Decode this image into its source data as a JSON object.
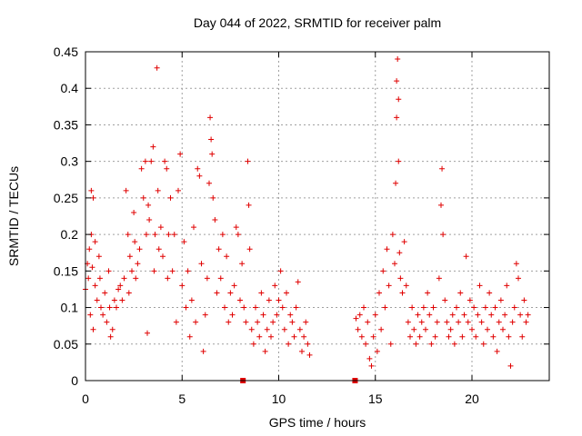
{
  "chart_data": {
    "type": "scatter",
    "title": "Day 044 of 2022, SRMTID for receiver palm",
    "xlabel": "GPS time / hours",
    "ylabel": "SRMTID / TECUs",
    "xlim": [
      0,
      24
    ],
    "ylim": [
      0,
      0.45
    ],
    "xticks": [
      0,
      5,
      10,
      15,
      20
    ],
    "xtick_labels": [
      "0",
      "5",
      "10",
      "15",
      "20"
    ],
    "yticks": [
      0,
      0.05,
      0.1,
      0.15,
      0.2,
      0.25,
      0.3,
      0.35,
      0.4,
      0.45
    ],
    "ytick_labels": [
      "0",
      "0.05",
      "0.1",
      "0.15",
      "0.2",
      "0.25",
      "0.3",
      "0.35",
      "0.4",
      "0.45"
    ],
    "grid": true,
    "marker": "plus",
    "colors": {
      "series": "#e00000",
      "grid": "#a0a0a0",
      "axis": "#000000"
    },
    "gap_markers": [
      {
        "x": 8.15,
        "y": 0
      },
      {
        "x": 13.95,
        "y": 0
      }
    ],
    "series": [
      {
        "name": "SRMTID",
        "points": [
          [
            0.0,
            0.125
          ],
          [
            0.1,
            0.16
          ],
          [
            0.15,
            0.14
          ],
          [
            0.2,
            0.18
          ],
          [
            0.25,
            0.09
          ],
          [
            0.3,
            0.26
          ],
          [
            0.3,
            0.2
          ],
          [
            0.35,
            0.155
          ],
          [
            0.4,
            0.25
          ],
          [
            0.4,
            0.07
          ],
          [
            0.5,
            0.19
          ],
          [
            0.5,
            0.13
          ],
          [
            0.6,
            0.11
          ],
          [
            0.7,
            0.17
          ],
          [
            0.75,
            0.14
          ],
          [
            0.8,
            0.1
          ],
          [
            0.9,
            0.09
          ],
          [
            1.0,
            0.12
          ],
          [
            1.1,
            0.08
          ],
          [
            1.2,
            0.15
          ],
          [
            1.25,
            0.1
          ],
          [
            1.3,
            0.06
          ],
          [
            1.4,
            0.07
          ],
          [
            1.5,
            0.11
          ],
          [
            1.6,
            0.1
          ],
          [
            1.7,
            0.125
          ],
          [
            1.8,
            0.13
          ],
          [
            1.9,
            0.11
          ],
          [
            2.0,
            0.14
          ],
          [
            2.1,
            0.26
          ],
          [
            2.2,
            0.2
          ],
          [
            2.25,
            0.12
          ],
          [
            2.3,
            0.17
          ],
          [
            2.4,
            0.15
          ],
          [
            2.5,
            0.23
          ],
          [
            2.55,
            0.19
          ],
          [
            2.6,
            0.14
          ],
          [
            2.7,
            0.16
          ],
          [
            2.8,
            0.18
          ],
          [
            2.9,
            0.29
          ],
          [
            3.0,
            0.25
          ],
          [
            3.1,
            0.3
          ],
          [
            3.15,
            0.2
          ],
          [
            3.2,
            0.065
          ],
          [
            3.25,
            0.24
          ],
          [
            3.3,
            0.22
          ],
          [
            3.4,
            0.3
          ],
          [
            3.5,
            0.32
          ],
          [
            3.55,
            0.15
          ],
          [
            3.6,
            0.2
          ],
          [
            3.7,
            0.428
          ],
          [
            3.75,
            0.26
          ],
          [
            3.8,
            0.18
          ],
          [
            3.9,
            0.21
          ],
          [
            4.0,
            0.17
          ],
          [
            4.1,
            0.3
          ],
          [
            4.2,
            0.29
          ],
          [
            4.25,
            0.14
          ],
          [
            4.3,
            0.2
          ],
          [
            4.4,
            0.25
          ],
          [
            4.5,
            0.15
          ],
          [
            4.6,
            0.2
          ],
          [
            4.7,
            0.08
          ],
          [
            4.8,
            0.26
          ],
          [
            4.9,
            0.31
          ],
          [
            5.0,
            0.13
          ],
          [
            5.1,
            0.19
          ],
          [
            5.2,
            0.1
          ],
          [
            5.3,
            0.15
          ],
          [
            5.4,
            0.06
          ],
          [
            5.5,
            0.11
          ],
          [
            5.6,
            0.21
          ],
          [
            5.7,
            0.08
          ],
          [
            5.8,
            0.29
          ],
          [
            5.9,
            0.28
          ],
          [
            6.0,
            0.16
          ],
          [
            6.1,
            0.04
          ],
          [
            6.2,
            0.09
          ],
          [
            6.3,
            0.14
          ],
          [
            6.4,
            0.27
          ],
          [
            6.45,
            0.36
          ],
          [
            6.5,
            0.33
          ],
          [
            6.55,
            0.31
          ],
          [
            6.6,
            0.25
          ],
          [
            6.7,
            0.22
          ],
          [
            6.8,
            0.12
          ],
          [
            6.9,
            0.18
          ],
          [
            7.0,
            0.14
          ],
          [
            7.1,
            0.2
          ],
          [
            7.2,
            0.1
          ],
          [
            7.3,
            0.17
          ],
          [
            7.4,
            0.08
          ],
          [
            7.5,
            0.12
          ],
          [
            7.6,
            0.09
          ],
          [
            7.7,
            0.13
          ],
          [
            7.8,
            0.21
          ],
          [
            7.9,
            0.2
          ],
          [
            8.0,
            0.11
          ],
          [
            8.1,
            0.16
          ],
          [
            8.2,
            0.1
          ],
          [
            8.3,
            0.08
          ],
          [
            8.4,
            0.3
          ],
          [
            8.45,
            0.24
          ],
          [
            8.5,
            0.18
          ],
          [
            8.6,
            0.07
          ],
          [
            8.7,
            0.05
          ],
          [
            8.8,
            0.1
          ],
          [
            8.9,
            0.08
          ],
          [
            9.0,
            0.06
          ],
          [
            9.1,
            0.12
          ],
          [
            9.2,
            0.09
          ],
          [
            9.3,
            0.04
          ],
          [
            9.4,
            0.07
          ],
          [
            9.5,
            0.11
          ],
          [
            9.6,
            0.06
          ],
          [
            9.7,
            0.08
          ],
          [
            9.8,
            0.13
          ],
          [
            9.9,
            0.09
          ],
          [
            10.0,
            0.11
          ],
          [
            10.1,
            0.15
          ],
          [
            10.2,
            0.1
          ],
          [
            10.3,
            0.07
          ],
          [
            10.4,
            0.12
          ],
          [
            10.5,
            0.05
          ],
          [
            10.6,
            0.09
          ],
          [
            10.7,
            0.08
          ],
          [
            10.8,
            0.06
          ],
          [
            10.9,
            0.1
          ],
          [
            11.0,
            0.135
          ],
          [
            11.1,
            0.07
          ],
          [
            11.2,
            0.04
          ],
          [
            11.3,
            0.06
          ],
          [
            11.4,
            0.08
          ],
          [
            11.5,
            0.05
          ],
          [
            11.6,
            0.035
          ],
          [
            14.0,
            0.085
          ],
          [
            14.1,
            0.07
          ],
          [
            14.2,
            0.09
          ],
          [
            14.3,
            0.06
          ],
          [
            14.4,
            0.1
          ],
          [
            14.5,
            0.05
          ],
          [
            14.6,
            0.08
          ],
          [
            14.7,
            0.03
          ],
          [
            14.8,
            0.02
          ],
          [
            14.9,
            0.06
          ],
          [
            15.0,
            0.09
          ],
          [
            15.1,
            0.04
          ],
          [
            15.2,
            0.12
          ],
          [
            15.3,
            0.07
          ],
          [
            15.4,
            0.15
          ],
          [
            15.5,
            0.1
          ],
          [
            15.6,
            0.18
          ],
          [
            15.7,
            0.13
          ],
          [
            15.8,
            0.05
          ],
          [
            15.9,
            0.2
          ],
          [
            16.0,
            0.16
          ],
          [
            16.05,
            0.27
          ],
          [
            16.1,
            0.36
          ],
          [
            16.1,
            0.41
          ],
          [
            16.15,
            0.44
          ],
          [
            16.2,
            0.385
          ],
          [
            16.2,
            0.3
          ],
          [
            16.25,
            0.175
          ],
          [
            16.3,
            0.14
          ],
          [
            16.4,
            0.12
          ],
          [
            16.5,
            0.19
          ],
          [
            16.6,
            0.13
          ],
          [
            16.7,
            0.08
          ],
          [
            16.8,
            0.06
          ],
          [
            16.9,
            0.1
          ],
          [
            17.0,
            0.07
          ],
          [
            17.1,
            0.05
          ],
          [
            17.2,
            0.09
          ],
          [
            17.3,
            0.06
          ],
          [
            17.4,
            0.08
          ],
          [
            17.5,
            0.1
          ],
          [
            17.6,
            0.07
          ],
          [
            17.7,
            0.12
          ],
          [
            17.8,
            0.09
          ],
          [
            17.9,
            0.05
          ],
          [
            18.0,
            0.1
          ],
          [
            18.1,
            0.06
          ],
          [
            18.2,
            0.08
          ],
          [
            18.3,
            0.14
          ],
          [
            18.4,
            0.24
          ],
          [
            18.45,
            0.29
          ],
          [
            18.5,
            0.2
          ],
          [
            18.6,
            0.11
          ],
          [
            18.7,
            0.08
          ],
          [
            18.8,
            0.06
          ],
          [
            18.9,
            0.07
          ],
          [
            19.0,
            0.09
          ],
          [
            19.1,
            0.05
          ],
          [
            19.2,
            0.1
          ],
          [
            19.3,
            0.08
          ],
          [
            19.4,
            0.12
          ],
          [
            19.5,
            0.06
          ],
          [
            19.6,
            0.09
          ],
          [
            19.7,
            0.17
          ],
          [
            19.8,
            0.08
          ],
          [
            19.9,
            0.11
          ],
          [
            20.0,
            0.07
          ],
          [
            20.1,
            0.1
          ],
          [
            20.2,
            0.06
          ],
          [
            20.3,
            0.09
          ],
          [
            20.4,
            0.13
          ],
          [
            20.5,
            0.08
          ],
          [
            20.6,
            0.05
          ],
          [
            20.7,
            0.1
          ],
          [
            20.8,
            0.07
          ],
          [
            20.9,
            0.12
          ],
          [
            21.0,
            0.09
          ],
          [
            21.1,
            0.06
          ],
          [
            21.2,
            0.1
          ],
          [
            21.3,
            0.04
          ],
          [
            21.4,
            0.08
          ],
          [
            21.5,
            0.11
          ],
          [
            21.6,
            0.07
          ],
          [
            21.7,
            0.09
          ],
          [
            21.8,
            0.13
          ],
          [
            21.9,
            0.06
          ],
          [
            22.0,
            0.02
          ],
          [
            22.1,
            0.08
          ],
          [
            22.2,
            0.1
          ],
          [
            22.3,
            0.16
          ],
          [
            22.4,
            0.14
          ],
          [
            22.5,
            0.09
          ],
          [
            22.6,
            0.06
          ],
          [
            22.7,
            0.11
          ],
          [
            22.8,
            0.08
          ],
          [
            22.9,
            0.09
          ]
        ]
      }
    ]
  }
}
